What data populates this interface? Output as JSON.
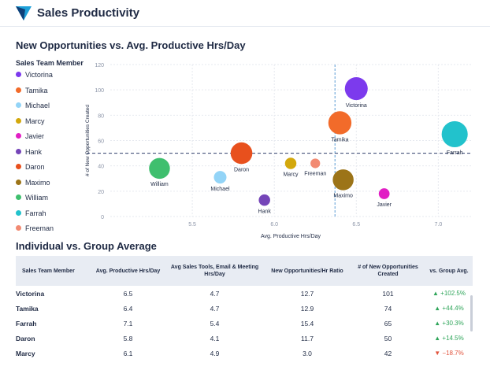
{
  "header": {
    "title": "Sales Productivity"
  },
  "chart_section": {
    "title": "New Opportunities vs. Avg. Productive Hrs/Day"
  },
  "legend": {
    "title": "Sales Team Member",
    "items": [
      {
        "label": "Victorina",
        "color": "#7c3aed"
      },
      {
        "label": "Tamika",
        "color": "#f26b2a"
      },
      {
        "label": "Michael",
        "color": "#93d4f7"
      },
      {
        "label": "Marcy",
        "color": "#d3a80c"
      },
      {
        "label": "Javier",
        "color": "#e11fc4"
      },
      {
        "label": "Hank",
        "color": "#7545b8"
      },
      {
        "label": "Daron",
        "color": "#e8501d"
      },
      {
        "label": "Maximo",
        "color": "#9c7418"
      },
      {
        "label": "William",
        "color": "#3fbf6e"
      },
      {
        "label": "Farrah",
        "color": "#22c2cc"
      },
      {
        "label": "Freeman",
        "color": "#f28a72"
      }
    ]
  },
  "chart_data": {
    "type": "scatter",
    "xlabel": "Avg. Productive Hrs/Day",
    "ylabel": "# of New Opportunities Created",
    "xlim": [
      5.0,
      7.2
    ],
    "ylim": [
      0,
      120
    ],
    "x_ticks": [
      "5.5",
      "6.0",
      "6.5",
      "7.0"
    ],
    "x_tick_values": [
      5.5,
      6.0,
      6.5,
      7.0
    ],
    "y_ticks": [
      "0",
      "20",
      "40",
      "60",
      "80",
      "100",
      "120"
    ],
    "y_tick_values": [
      0,
      20,
      40,
      60,
      80,
      100,
      120
    ],
    "grid": true,
    "reference_lines": {
      "x": 6.37,
      "y": 50
    },
    "points": [
      {
        "name": "Victorina",
        "x": 6.5,
        "y": 101,
        "size": 12.7,
        "color": "#7c3aed"
      },
      {
        "name": "Tamika",
        "x": 6.4,
        "y": 74,
        "size": 12.9,
        "color": "#f26b2a"
      },
      {
        "name": "Farrah",
        "x": 7.1,
        "y": 65,
        "size": 15.4,
        "color": "#22c2cc"
      },
      {
        "name": "Daron",
        "x": 5.8,
        "y": 50,
        "size": 11.7,
        "color": "#e8501d"
      },
      {
        "name": "Marcy",
        "x": 6.1,
        "y": 42,
        "size": 3.0,
        "color": "#d3a80c"
      },
      {
        "name": "Freeman",
        "x": 6.25,
        "y": 42,
        "size": 1.5,
        "color": "#f28a72"
      },
      {
        "name": "William",
        "x": 5.3,
        "y": 38,
        "size": 11.0,
        "color": "#3fbf6e"
      },
      {
        "name": "Michael",
        "x": 5.67,
        "y": 31,
        "size": 4.0,
        "color": "#93d4f7"
      },
      {
        "name": "Maximo",
        "x": 6.42,
        "y": 29,
        "size": 11.0,
        "color": "#9c7418"
      },
      {
        "name": "Javier",
        "x": 6.67,
        "y": 18,
        "size": 2.5,
        "color": "#e11fc4"
      },
      {
        "name": "Hank",
        "x": 5.94,
        "y": 13,
        "size": 3.0,
        "color": "#7545b8"
      }
    ]
  },
  "table_section": {
    "title": "Individual vs. Group Average"
  },
  "table": {
    "headers": [
      "Sales Team Member",
      "Avg. Productive Hrs/Day",
      "Avg Sales Tools, Email & Meeting Hrs/Day",
      "New Opportunities/Hr Ratio",
      "# of New Opportunities Created",
      "vs. Group Avg."
    ],
    "rows": [
      {
        "name": "Victorina",
        "hrs": "6.5",
        "tools": "4.7",
        "ratio": "12.7",
        "created": "101",
        "vs": "▲ +102.5%",
        "trend": "up"
      },
      {
        "name": "Tamika",
        "hrs": "6.4",
        "tools": "4.7",
        "ratio": "12.9",
        "created": "74",
        "vs": "▲ +44.4%",
        "trend": "up"
      },
      {
        "name": "Farrah",
        "hrs": "7.1",
        "tools": "5.4",
        "ratio": "15.4",
        "created": "65",
        "vs": "▲ +30.3%",
        "trend": "up"
      },
      {
        "name": "Daron",
        "hrs": "5.8",
        "tools": "4.1",
        "ratio": "11.7",
        "created": "50",
        "vs": "▲ +14.5%",
        "trend": "up"
      },
      {
        "name": "Marcy",
        "hrs": "6.1",
        "tools": "4.9",
        "ratio": "3.0",
        "created": "42",
        "vs": "▼ −18.7%",
        "trend": "down"
      }
    ]
  }
}
